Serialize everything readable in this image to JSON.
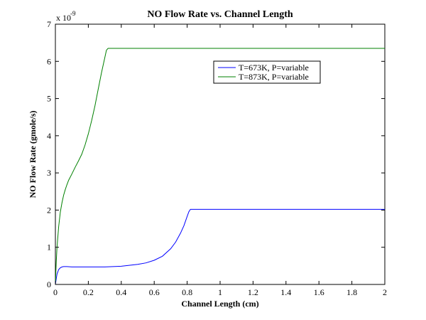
{
  "chart_data": {
    "type": "line",
    "title": "NO Flow Rate vs. Channel Length",
    "xlabel": "Channel Length (cm)",
    "ylabel": "NO Flow Rate (gmole/s)",
    "xlim": [
      0,
      2
    ],
    "ylim": [
      0,
      7
    ],
    "x_ticks": [
      0,
      0.2,
      0.4,
      0.6,
      0.8,
      1,
      1.2,
      1.4,
      1.6,
      1.8,
      2
    ],
    "x_tick_labels": [
      "0",
      "0.2",
      "0.4",
      "0.6",
      "0.8",
      "1",
      "1.2",
      "1.4",
      "1.6",
      "1.8",
      "2"
    ],
    "y_ticks": [
      0,
      1,
      2,
      3,
      4,
      5,
      6,
      7
    ],
    "y_tick_labels": [
      "0",
      "1",
      "2",
      "3",
      "4",
      "5",
      "6",
      "7"
    ],
    "y_multiplier_base": "x 10",
    "y_multiplier_exp": "-9",
    "grid": false,
    "legend_position": "top-right",
    "series": [
      {
        "name": "T=673K, P=variable",
        "color": "#0000ff",
        "x": [
          0,
          0.005,
          0.01,
          0.02,
          0.03,
          0.04,
          0.05,
          0.07,
          0.1,
          0.2,
          0.3,
          0.4,
          0.5,
          0.55,
          0.6,
          0.65,
          0.7,
          0.73,
          0.76,
          0.78,
          0.8,
          0.81,
          0.82,
          0.9,
          1,
          1.2,
          1.4,
          1.6,
          1.8,
          2
        ],
        "y": [
          0,
          0.15,
          0.28,
          0.4,
          0.45,
          0.47,
          0.48,
          0.48,
          0.47,
          0.47,
          0.47,
          0.49,
          0.54,
          0.58,
          0.65,
          0.76,
          0.96,
          1.14,
          1.38,
          1.58,
          1.83,
          1.95,
          2.02,
          2.02,
          2.02,
          2.02,
          2.02,
          2.02,
          2.02,
          2.02
        ]
      },
      {
        "name": "T=873K, P=variable",
        "color": "#008000",
        "x": [
          0,
          0.005,
          0.01,
          0.02,
          0.03,
          0.04,
          0.05,
          0.06,
          0.07,
          0.08,
          0.1,
          0.12,
          0.14,
          0.16,
          0.18,
          0.2,
          0.22,
          0.24,
          0.26,
          0.28,
          0.3,
          0.31,
          0.32,
          0.4,
          0.6,
          0.8,
          1,
          1.2,
          1.4,
          1.6,
          1.8,
          2
        ],
        "y": [
          0,
          0.6,
          1.0,
          1.55,
          1.95,
          2.2,
          2.4,
          2.55,
          2.68,
          2.8,
          2.97,
          3.15,
          3.32,
          3.5,
          3.75,
          4.05,
          4.4,
          4.8,
          5.25,
          5.7,
          6.1,
          6.3,
          6.35,
          6.35,
          6.35,
          6.35,
          6.35,
          6.35,
          6.35,
          6.35,
          6.35,
          6.35
        ]
      }
    ]
  }
}
